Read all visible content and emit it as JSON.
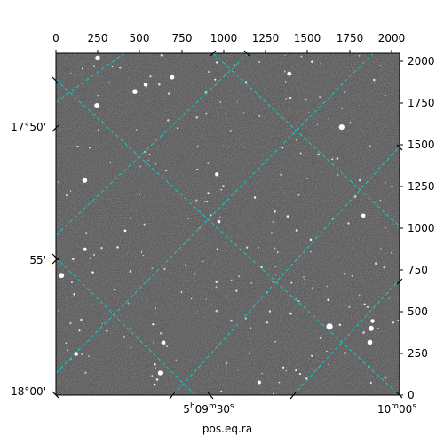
{
  "chart_data": {
    "type": "image",
    "xlabel": "pos.eq.ra",
    "top_axis": {
      "range": [
        0,
        2048
      ],
      "ticks": [
        0,
        250,
        500,
        750,
        1000,
        1250,
        1500,
        1750,
        2000
      ]
    },
    "right_axis": {
      "range": [
        0,
        2048
      ],
      "ticks": [
        0,
        250,
        500,
        750,
        1000,
        1250,
        1500,
        1750,
        2000
      ]
    },
    "ra_labels": [
      {
        "value": "5h09m30s",
        "text": "5",
        "sup1": "h",
        "mid": "09",
        "sup2": "m",
        "end": "30",
        "sup3": "s"
      },
      {
        "value": "10m00s",
        "text": "",
        "sup1": "",
        "mid": "10",
        "sup2": "m",
        "end": "00",
        "sup3": "s"
      }
    ],
    "dec_labels": [
      "17°50'",
      "55'",
      "18°00'"
    ],
    "grid": true,
    "grid_color": "#00d8d8",
    "image_colormap": "gray",
    "image_background": "#5e5e5e"
  }
}
